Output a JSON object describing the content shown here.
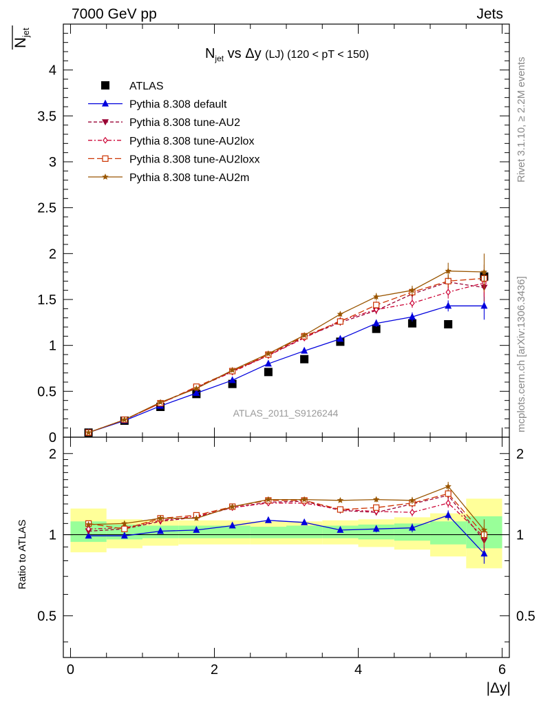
{
  "header": {
    "energy_label": "7000 GeV pp",
    "process_label": "Jets",
    "side_label_top": "Rivet 3.1.10, ≥ 2.2M events",
    "side_label_bottom": "mcplots.cern.ch [arXiv:1306.3436]",
    "analysis_id": "ATLAS_2011_S9126244"
  },
  "title": {
    "main_n": "N",
    "main_sub": "jet",
    "main_vs": " vs Δy ",
    "main_lj": "(LJ)",
    "main_range": " (120 < pT < 150)"
  },
  "axes": {
    "top_ylabel_n": "N",
    "top_ylabel_sub": "jet",
    "bottom_ylabel": "Ratio to ATLAS",
    "xlabel": "|Δy|"
  },
  "colors": {
    "atlas": "#000000",
    "default": "#0000dd",
    "au2": "#990033",
    "au2lox": "#cc0033",
    "au2loxx": "#cc3300",
    "au2m": "#995500",
    "band_inner": "#99ff99",
    "band_outer": "#ffff99"
  },
  "chart_data": [
    {
      "type": "line",
      "panel": "main",
      "title": "N_jet vs Δy (LJ) (120 < pT < 150)",
      "xlabel": "|Δy|",
      "ylabel": "N_jet (mean)",
      "xlim": [
        -0.1,
        6.1
      ],
      "ylim": [
        0,
        4.5
      ],
      "yticks": [
        "0",
        "0.5",
        "1",
        "1.5",
        "2",
        "2.5",
        "3",
        "3.5",
        "4"
      ],
      "x": [
        0.25,
        0.75,
        1.25,
        1.75,
        2.25,
        2.75,
        3.25,
        3.75,
        4.25,
        4.75,
        5.25,
        5.75
      ],
      "legend_position": "top-left",
      "series": [
        {
          "key": "atlas",
          "name": "ATLAS",
          "marker": "square",
          "values": [
            0.05,
            0.18,
            0.33,
            0.47,
            0.58,
            0.71,
            0.85,
            1.04,
            1.18,
            1.24,
            1.23,
            1.75
          ]
        },
        {
          "key": "default",
          "name": "Pythia 8.308 default",
          "marker": "triangle-up",
          "values": [
            0.05,
            0.18,
            0.34,
            0.48,
            0.62,
            0.8,
            0.94,
            1.07,
            1.24,
            1.31,
            1.43,
            1.43
          ],
          "errors": [
            0.01,
            0.01,
            0.01,
            0.02,
            0.02,
            0.02,
            0.02,
            0.03,
            0.04,
            0.05,
            0.06,
            0.15
          ]
        },
        {
          "key": "au2",
          "name": "Pythia 8.308 tune-AU2",
          "marker": "triangle-down",
          "values": [
            0.05,
            0.19,
            0.37,
            0.54,
            0.72,
            0.89,
            1.09,
            1.25,
            1.38,
            1.56,
            1.69,
            1.63
          ],
          "errors": [
            0.01,
            0.01,
            0.01,
            0.02,
            0.02,
            0.02,
            0.02,
            0.03,
            0.04,
            0.05,
            0.07,
            0.15
          ]
        },
        {
          "key": "au2lox",
          "name": "Pythia 8.308 tune-AU2lox",
          "marker": "diamond-open",
          "values": [
            0.05,
            0.19,
            0.37,
            0.54,
            0.71,
            0.89,
            1.08,
            1.27,
            1.39,
            1.46,
            1.58,
            1.68
          ],
          "errors": [
            0.01,
            0.01,
            0.01,
            0.02,
            0.02,
            0.02,
            0.02,
            0.03,
            0.04,
            0.05,
            0.07,
            0.15
          ]
        },
        {
          "key": "au2loxx",
          "name": "Pythia 8.308 tune-AU2loxx",
          "marker": "square-open",
          "values": [
            0.05,
            0.19,
            0.37,
            0.55,
            0.72,
            0.9,
            1.1,
            1.26,
            1.44,
            1.58,
            1.7,
            1.73
          ],
          "errors": [
            0.01,
            0.01,
            0.01,
            0.02,
            0.02,
            0.02,
            0.02,
            0.03,
            0.04,
            0.05,
            0.07,
            0.15
          ]
        },
        {
          "key": "au2m",
          "name": "Pythia 8.308 tune-AU2m",
          "marker": "star",
          "values": [
            0.05,
            0.19,
            0.38,
            0.53,
            0.73,
            0.91,
            1.11,
            1.34,
            1.53,
            1.6,
            1.81,
            1.8
          ],
          "errors": [
            0.01,
            0.01,
            0.01,
            0.02,
            0.02,
            0.02,
            0.02,
            0.03,
            0.04,
            0.05,
            0.09,
            0.2
          ]
        }
      ]
    },
    {
      "type": "line",
      "panel": "ratio",
      "ylabel": "Ratio to ATLAS",
      "xlabel": "|Δy|",
      "xlim": [
        -0.1,
        6.1
      ],
      "ylim": [
        0.35,
        2.3
      ],
      "xticks": [
        "0",
        "2",
        "4",
        "6"
      ],
      "yticks": [
        "0.5",
        "1",
        "2"
      ],
      "y_scale": "log",
      "reference_line": 1,
      "band_edges": [
        0,
        0.5,
        1,
        1.5,
        2,
        2.5,
        3,
        3.5,
        4,
        4.5,
        5,
        5.5,
        6
      ],
      "band_inner": [
        [
          0.94,
          1.12
        ],
        [
          0.96,
          1.09
        ],
        [
          0.97,
          1.08
        ],
        [
          0.97,
          1.08
        ],
        [
          0.97,
          1.08
        ],
        [
          0.97,
          1.07
        ],
        [
          0.97,
          1.08
        ],
        [
          0.97,
          1.08
        ],
        [
          0.96,
          1.09
        ],
        [
          0.95,
          1.1
        ],
        [
          0.92,
          1.12
        ],
        [
          0.89,
          1.17
        ]
      ],
      "band_outer": [
        [
          0.86,
          1.25
        ],
        [
          0.89,
          1.14
        ],
        [
          0.91,
          1.13
        ],
        [
          0.92,
          1.13
        ],
        [
          0.92,
          1.13
        ],
        [
          0.92,
          1.12
        ],
        [
          0.92,
          1.12
        ],
        [
          0.92,
          1.13
        ],
        [
          0.9,
          1.14
        ],
        [
          0.88,
          1.16
        ],
        [
          0.83,
          1.2
        ],
        [
          0.75,
          1.36
        ]
      ],
      "x": [
        0.25,
        0.75,
        1.25,
        1.75,
        2.25,
        2.75,
        3.25,
        3.75,
        4.25,
        4.75,
        5.25,
        5.75
      ],
      "series": [
        {
          "key": "default",
          "name": "Pythia 8.308 default",
          "marker": "triangle-up",
          "values": [
            0.99,
            0.99,
            1.03,
            1.04,
            1.08,
            1.13,
            1.11,
            1.04,
            1.05,
            1.06,
            1.18,
            0.85
          ],
          "errors": [
            0.02,
            0.02,
            0.02,
            0.02,
            0.02,
            0.02,
            0.02,
            0.02,
            0.03,
            0.04,
            0.05,
            0.07
          ]
        },
        {
          "key": "au2",
          "name": "Pythia 8.308 tune-AU2",
          "marker": "triangle-down",
          "values": [
            1.03,
            1.05,
            1.12,
            1.16,
            1.26,
            1.32,
            1.33,
            1.23,
            1.21,
            1.3,
            1.4,
            0.95
          ],
          "errors": [
            0.02,
            0.02,
            0.02,
            0.02,
            0.02,
            0.02,
            0.02,
            0.02,
            0.03,
            0.04,
            0.05,
            0.08
          ]
        },
        {
          "key": "au2lox",
          "name": "Pythia 8.308 tune-AU2lox",
          "marker": "diamond-open",
          "values": [
            1.05,
            1.06,
            1.13,
            1.17,
            1.26,
            1.31,
            1.31,
            1.24,
            1.22,
            1.21,
            1.31,
            0.98
          ],
          "errors": [
            0.02,
            0.02,
            0.02,
            0.02,
            0.02,
            0.02,
            0.02,
            0.02,
            0.03,
            0.04,
            0.05,
            0.08
          ]
        },
        {
          "key": "au2loxx",
          "name": "Pythia 8.308 tune-AU2loxx",
          "marker": "square-open",
          "values": [
            1.1,
            1.05,
            1.15,
            1.18,
            1.27,
            1.34,
            1.34,
            1.24,
            1.26,
            1.31,
            1.42,
            1.0
          ],
          "errors": [
            0.02,
            0.02,
            0.02,
            0.02,
            0.02,
            0.02,
            0.02,
            0.02,
            0.03,
            0.04,
            0.05,
            0.08
          ]
        },
        {
          "key": "au2m",
          "name": "Pythia 8.308 tune-AU2m",
          "marker": "star",
          "values": [
            1.09,
            1.1,
            1.15,
            1.15,
            1.27,
            1.35,
            1.35,
            1.34,
            1.35,
            1.34,
            1.51,
            1.04
          ],
          "errors": [
            0.02,
            0.02,
            0.02,
            0.02,
            0.02,
            0.02,
            0.02,
            0.02,
            0.03,
            0.04,
            0.06,
            0.1
          ]
        }
      ]
    }
  ]
}
